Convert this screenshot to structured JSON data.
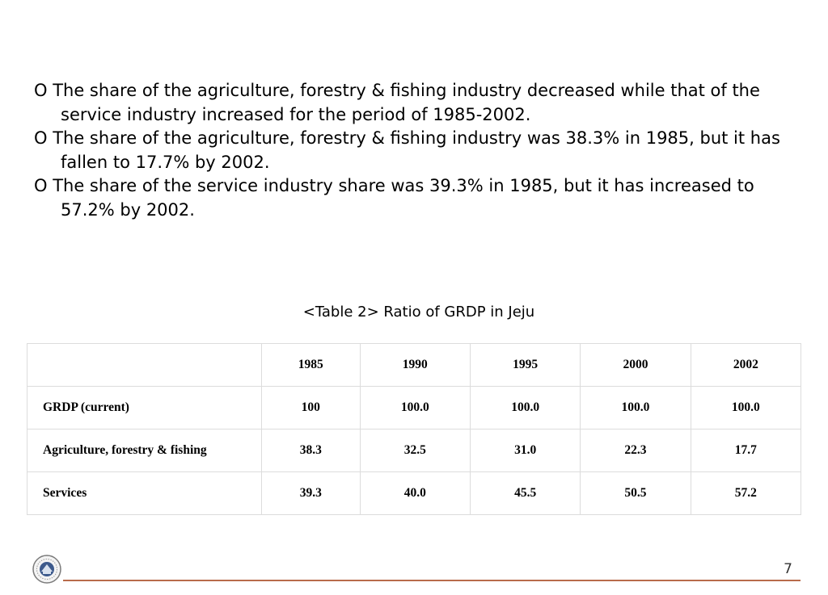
{
  "bullets": [
    "O The share of the agriculture, forestry & fishing industry decreased while that of the service industry increased for the period of 1985-2002.",
    "O The share of the agriculture, forestry & fishing industry was 38.3% in 1985, but it has fallen to 17.7% by 2002.",
    "O The share of the service industry share was 39.3% in 1985, but it has increased to 57.2% by 2002."
  ],
  "table": {
    "caption": "<Table 2> Ratio of GRDP in Jeju",
    "header": [
      "",
      "1985",
      "1990",
      "1995",
      "2000",
      "2002"
    ],
    "rows": [
      {
        "label": "GRDP (current)",
        "values": [
          "100",
          "100.0",
          "100.0",
          "100.0",
          "100.0"
        ]
      },
      {
        "label": "Agriculture, forestry & fishing",
        "values": [
          "38.3",
          "32.5",
          "31.0",
          "22.3",
          "17.7"
        ]
      },
      {
        "label": "Services",
        "values": [
          "39.3",
          "40.0",
          "45.5",
          "50.5",
          "57.2"
        ]
      }
    ]
  },
  "footer": {
    "page_number": "7",
    "logo_icon": "university-seal-icon",
    "line_color": "#b86b4b"
  }
}
